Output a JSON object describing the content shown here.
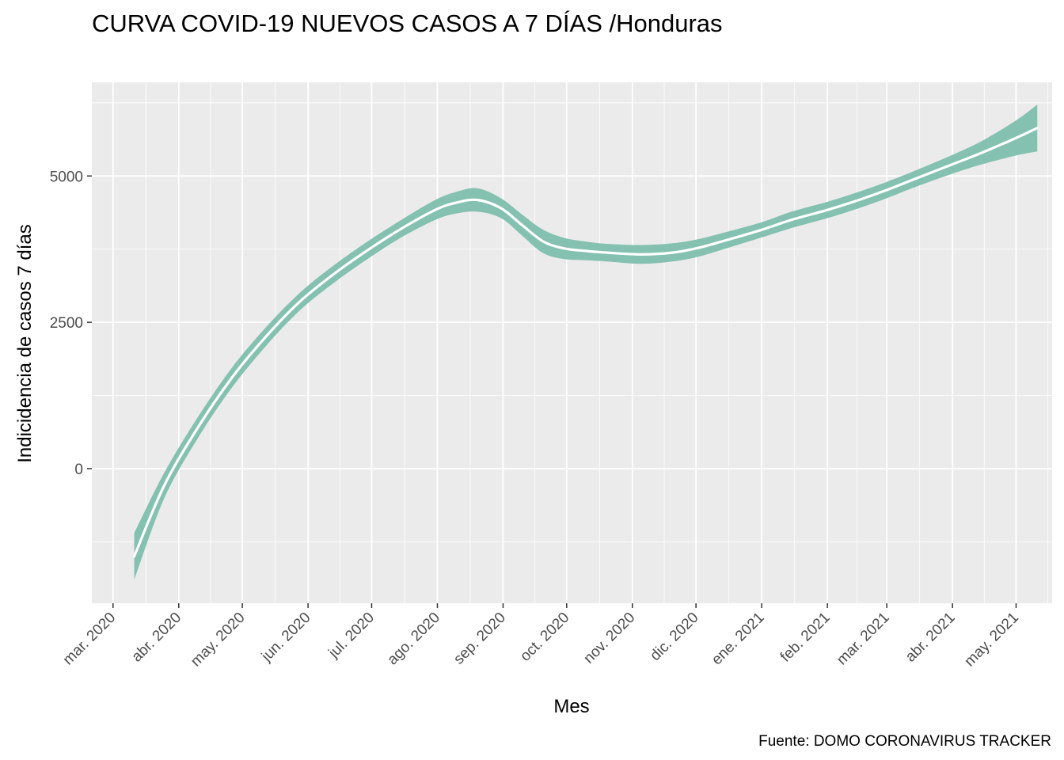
{
  "chart_data": {
    "type": "area",
    "title": "CURVA COVID-19 NUEVOS CASOS A 7 DÍAS /Honduras",
    "xlabel": "Mes",
    "ylabel": "Indicidencia de casos 7 días",
    "caption": "Fuente: DOMO CORONAVIRUS TRACKER",
    "x_tick_labels": [
      "mar. 2020",
      "abr. 2020",
      "may. 2020",
      "jun. 2020",
      "jul. 2020",
      "ago. 2020",
      "sep. 2020",
      "oct. 2020",
      "nov. 2020",
      "dic. 2020",
      "ene. 2021",
      "feb. 2021",
      "mar. 2021",
      "abr. 2021",
      "may. 2021"
    ],
    "x_tick_dates": [
      "2020-03-01",
      "2020-04-01",
      "2020-05-01",
      "2020-06-01",
      "2020-07-01",
      "2020-08-01",
      "2020-09-01",
      "2020-10-01",
      "2020-11-01",
      "2020-12-01",
      "2021-01-01",
      "2021-02-01",
      "2021-03-01",
      "2021-04-01",
      "2021-05-01"
    ],
    "y_ticks": [
      0,
      2500,
      5000
    ],
    "y_tick_labels": [
      "0",
      "2500",
      "5000"
    ],
    "xlim": [
      "2020-02-20",
      "2021-05-18"
    ],
    "ylim": [
      -2300,
      6600
    ],
    "grid": true,
    "colors": {
      "panel": "#ebebeb",
      "grid": "#ffffff",
      "ribbon": "#85c1b0",
      "line": "#ffffff"
    },
    "series": [
      {
        "x": [
          "2020-03-11",
          "2020-03-25",
          "2020-04-10",
          "2020-04-26",
          "2020-05-12",
          "2020-05-28",
          "2020-06-13",
          "2020-06-29",
          "2020-07-15",
          "2020-07-31",
          "2020-08-10",
          "2020-08-20",
          "2020-08-31",
          "2020-09-10",
          "2020-09-20",
          "2020-09-30",
          "2020-10-10",
          "2020-10-20",
          "2020-11-05",
          "2020-11-20",
          "2020-12-02",
          "2020-12-15",
          "2021-01-01",
          "2021-01-15",
          "2021-02-01",
          "2021-02-15",
          "2021-03-01",
          "2021-03-15",
          "2021-04-01",
          "2021-04-15",
          "2021-05-01",
          "2021-05-11"
        ],
        "y": [
          -1500,
          -300,
          700,
          1550,
          2250,
          2850,
          3320,
          3730,
          4100,
          4420,
          4545,
          4590,
          4450,
          4160,
          3880,
          3760,
          3720,
          3690,
          3660,
          3690,
          3770,
          3900,
          4080,
          4250,
          4420,
          4580,
          4760,
          4960,
          5200,
          5400,
          5650,
          5820
        ],
        "y_lower": [
          -1900,
          -520,
          520,
          1380,
          2090,
          2700,
          3170,
          3580,
          3950,
          4250,
          4360,
          4390,
          4280,
          3980,
          3680,
          3580,
          3560,
          3540,
          3500,
          3540,
          3620,
          3760,
          3950,
          4110,
          4280,
          4440,
          4620,
          4820,
          5040,
          5200,
          5350,
          5420
        ],
        "y_upper": [
          -1100,
          -80,
          880,
          1720,
          2410,
          3000,
          3470,
          3880,
          4250,
          4590,
          4730,
          4790,
          4620,
          4340,
          4080,
          3940,
          3880,
          3840,
          3820,
          3850,
          3920,
          4040,
          4210,
          4390,
          4560,
          4720,
          4900,
          5100,
          5360,
          5600,
          5950,
          6220
        ]
      }
    ]
  }
}
